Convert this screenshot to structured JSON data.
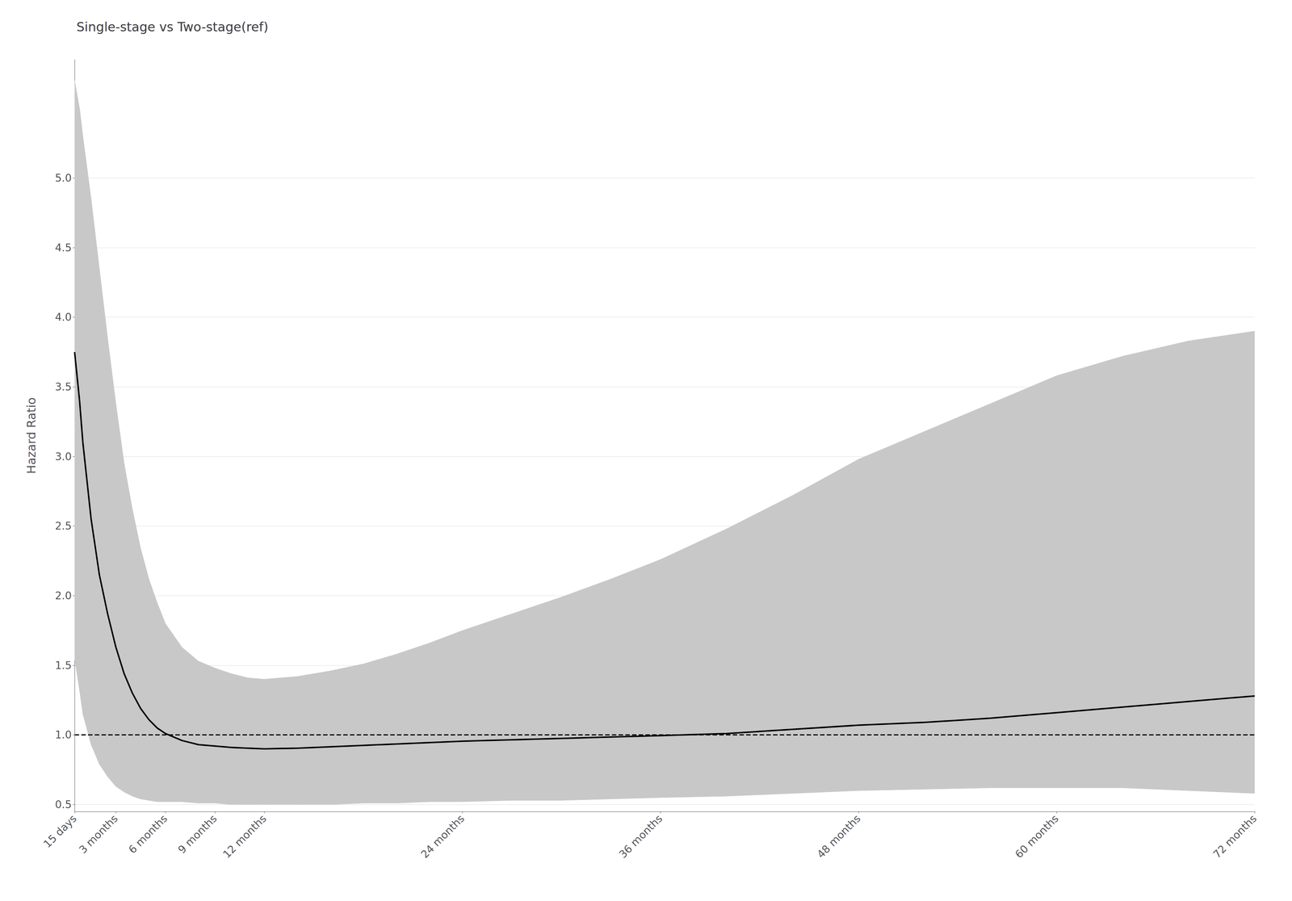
{
  "chart_data": {
    "type": "line",
    "title": "Single-stage vs Two-stage(ref)",
    "ylabel": "Hazard Ratio",
    "x": [
      0.5,
      0.8,
      1.0,
      1.5,
      2.0,
      2.5,
      3.0,
      3.5,
      4.0,
      4.5,
      5.0,
      5.5,
      6.0,
      7.0,
      8.0,
      9.0,
      10.0,
      11.0,
      12.0,
      14.0,
      16.0,
      18.0,
      20.0,
      22.0,
      24.0,
      27.0,
      30.0,
      33.0,
      36.0,
      40.0,
      44.0,
      48.0,
      52.0,
      56.0,
      60.0,
      64.0,
      68.0,
      72.0
    ],
    "series": [
      {
        "type": "band",
        "color": "#c8c8c8",
        "lower": [
          1.55,
          1.32,
          1.15,
          0.93,
          0.79,
          0.7,
          0.63,
          0.59,
          0.56,
          0.54,
          0.53,
          0.52,
          0.52,
          0.52,
          0.51,
          0.51,
          0.5,
          0.5,
          0.5,
          0.5,
          0.5,
          0.51,
          0.51,
          0.52,
          0.52,
          0.53,
          0.53,
          0.54,
          0.55,
          0.56,
          0.58,
          0.6,
          0.61,
          0.62,
          0.62,
          0.62,
          0.6,
          0.58
        ],
        "upper": [
          5.7,
          5.5,
          5.3,
          4.85,
          4.35,
          3.85,
          3.38,
          2.95,
          2.62,
          2.34,
          2.12,
          1.95,
          1.8,
          1.63,
          1.53,
          1.48,
          1.44,
          1.41,
          1.4,
          1.42,
          1.46,
          1.51,
          1.58,
          1.66,
          1.75,
          1.87,
          1.99,
          2.12,
          2.26,
          2.48,
          2.72,
          2.98,
          3.18,
          3.38,
          3.58,
          3.72,
          3.83,
          3.9
        ]
      },
      {
        "type": "line",
        "color": "#000000",
        "values": [
          3.75,
          3.4,
          3.1,
          2.55,
          2.15,
          1.87,
          1.63,
          1.44,
          1.3,
          1.19,
          1.11,
          1.05,
          1.01,
          0.96,
          0.93,
          0.92,
          0.91,
          0.905,
          0.9,
          0.905,
          0.915,
          0.925,
          0.935,
          0.945,
          0.955,
          0.965,
          0.975,
          0.985,
          0.995,
          1.01,
          1.04,
          1.07,
          1.09,
          1.12,
          1.16,
          1.2,
          1.24,
          1.28
        ]
      }
    ],
    "reference_line": {
      "value": 1.0,
      "color": "#000000",
      "line_style": "dashed"
    },
    "xlim": [
      0.5,
      72
    ],
    "xticks": [
      {
        "value": 0.5,
        "label": "15 days"
      },
      {
        "value": 3,
        "label": "3 months"
      },
      {
        "value": 6,
        "label": "6 months"
      },
      {
        "value": 9,
        "label": "9 months"
      },
      {
        "value": 12,
        "label": "12 months"
      },
      {
        "value": 24,
        "label": "24 months"
      },
      {
        "value": 36,
        "label": "36 months"
      },
      {
        "value": 48,
        "label": "48 months"
      },
      {
        "value": 60,
        "label": "60 months"
      },
      {
        "value": 72,
        "label": "72 months"
      }
    ],
    "ylim": [
      0.45,
      5.85
    ],
    "yticks": [
      0.5,
      {
        "value": 1.0,
        "label": "1.0"
      },
      1.5,
      {
        "value": 2.0,
        "label": "2.0"
      },
      2.5,
      {
        "value": 3.0,
        "label": "3.0"
      },
      3.5,
      {
        "value": 4.0,
        "label": "4.0"
      },
      4.5,
      {
        "value": 5.0,
        "label": "5.0"
      }
    ],
    "grid": "y"
  }
}
